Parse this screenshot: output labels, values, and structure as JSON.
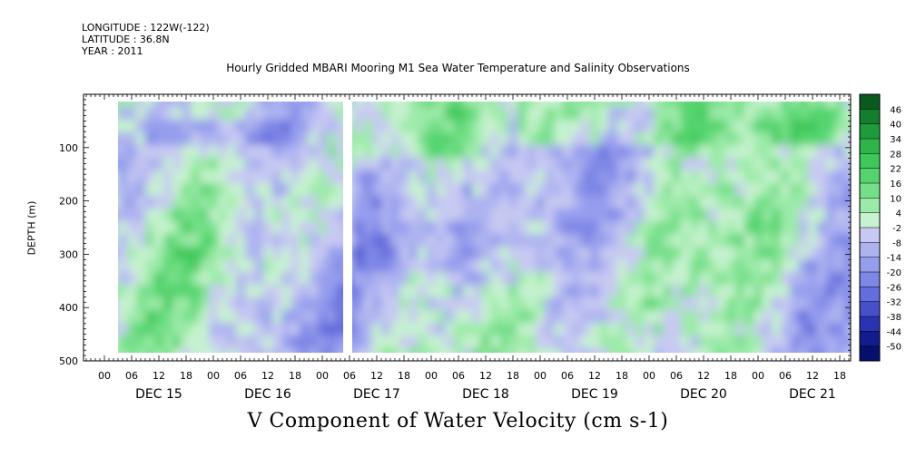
{
  "header": {
    "longitude": "LONGITUDE : 122W(-122)",
    "latitude": "LATITUDE : 36.8N",
    "year": "YEAR : 2011",
    "title": "Hourly Gridded MBARI Mooring M1 Sea Water Temperature and Salinity Observations"
  },
  "footer_title": "V Component of Water Velocity (cm s-1)",
  "chart_data": {
    "type": "heatmap",
    "title": "Hourly Gridded MBARI Mooring M1 Sea Water Temperature and Salinity Observations",
    "xlabel": "",
    "ylabel": "DEPTH (m)",
    "colorbar_label": "V Component of Water Velocity (cm s-1)",
    "ylim": [
      500,
      0
    ],
    "y_ticks": [
      100,
      200,
      300,
      400,
      500
    ],
    "x_hour_ticks": [
      "00",
      "06",
      "12",
      "18",
      "00",
      "06",
      "12",
      "18",
      "00",
      "06",
      "12",
      "18",
      "00",
      "06",
      "12",
      "18",
      "00",
      "06",
      "12",
      "18",
      "00",
      "06",
      "12",
      "18",
      "00",
      "06",
      "12",
      "18"
    ],
    "x_day_labels": [
      "DEC 15",
      "DEC 16",
      "DEC 17",
      "DEC 18",
      "DEC 19",
      "DEC 20",
      "DEC 21"
    ],
    "colorbar_levels": [
      "46",
      "40",
      "34",
      "28",
      "22",
      "16",
      "10",
      "4",
      "-2",
      "-8",
      "-14",
      "-20",
      "-26",
      "-32",
      "-38",
      "-44",
      "-50"
    ],
    "colorbar_colors": [
      "#0a5a20",
      "#137f2e",
      "#1e9c3c",
      "#2db54a",
      "#3fc85a",
      "#55d46e",
      "#74df88",
      "#9ceaa9",
      "#c6f2cf",
      "#c7c9f2",
      "#aeb3f0",
      "#959ded",
      "#7e86e6",
      "#636ddb",
      "#4650cb",
      "#2a34b3",
      "#121c8e",
      "#060f6b"
    ],
    "grid": false,
    "legend_position": "right"
  }
}
